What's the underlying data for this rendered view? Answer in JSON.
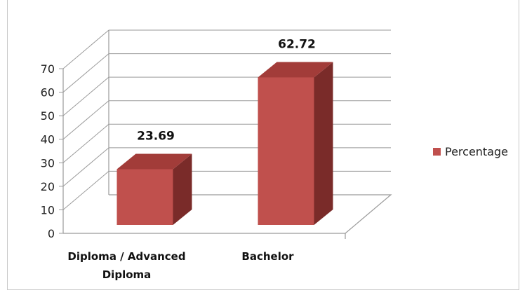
{
  "chart_data": {
    "type": "bar",
    "title": "",
    "xlabel": "",
    "ylabel": "",
    "categories": [
      "Diploma / Advanced Diploma",
      "Bachelor"
    ],
    "category_lines": [
      [
        "Diploma / Advanced",
        "Diploma"
      ],
      [
        "Bachelor"
      ]
    ],
    "series": [
      {
        "name": "Percentage",
        "values": [
          23.69,
          62.72
        ]
      }
    ],
    "data_labels": [
      "23.69",
      "62.72"
    ],
    "ylim": [
      0,
      70
    ],
    "yticks": [
      0,
      10,
      20,
      30,
      40,
      50,
      60,
      70
    ],
    "grid": true,
    "legend": "right",
    "three_d": true,
    "colors": {
      "bar_front": "#c0504d",
      "bar_top": "#a23c39",
      "bar_side": "#7a2b29",
      "grid": "#9a9a9a"
    }
  }
}
